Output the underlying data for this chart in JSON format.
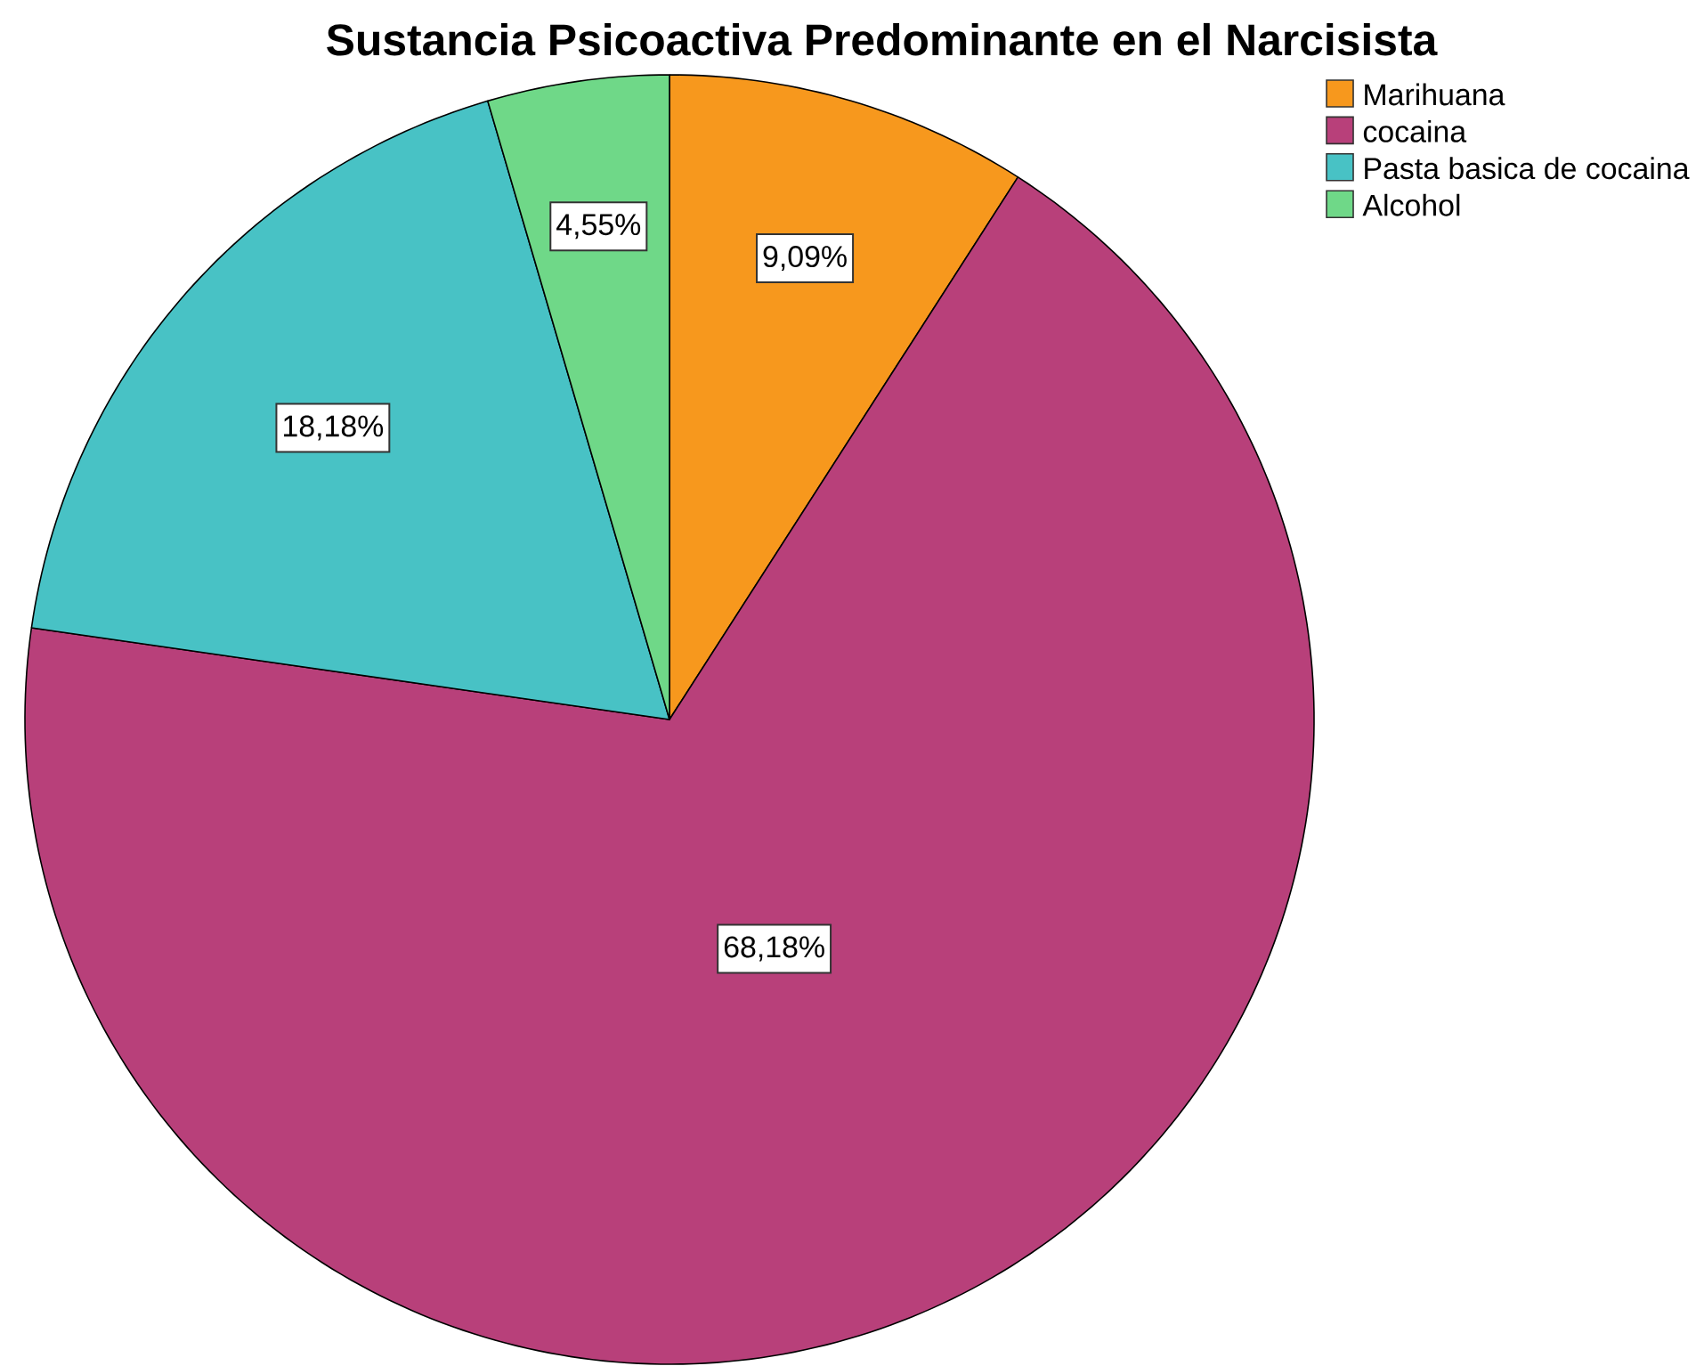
{
  "chart_data": {
    "type": "pie",
    "title": "Sustancia Psicoactiva Predominante en el Narcisista",
    "categories": [
      "Marihuana",
      "cocaina",
      "Pasta basica de cocaina",
      "Alcohol"
    ],
    "values": [
      9.09,
      68.18,
      18.18,
      4.55
    ],
    "value_labels": [
      "9,09%",
      "68,18%",
      "18,18%",
      "4,55%"
    ],
    "colors": [
      "#f7981d",
      "#b8407a",
      "#48c2c5",
      "#6fd888"
    ],
    "legend": "top right"
  }
}
